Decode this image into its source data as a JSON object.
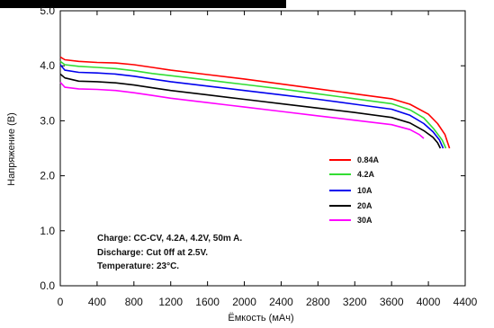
{
  "chart_data": {
    "type": "line",
    "title": "",
    "xlabel": "Ёмкость (мАч)",
    "ylabel": "Напряжение (В)",
    "xlim": [
      0,
      4400
    ],
    "ylim": [
      0.0,
      5.0
    ],
    "x_ticks": [
      "0",
      "400",
      "800",
      "1200",
      "1600",
      "2000",
      "2400",
      "2800",
      "3200",
      "3600",
      "4000",
      "4400"
    ],
    "y_ticks": [
      "0.0",
      "1.0",
      "2.0",
      "3.0",
      "4.0",
      "5.0"
    ],
    "grid": false,
    "legend_position": "right",
    "series": [
      {
        "name": "0.84A",
        "color": "#ff0000",
        "points": [
          [
            0,
            4.16
          ],
          [
            50,
            4.11
          ],
          [
            200,
            4.08
          ],
          [
            400,
            4.06
          ],
          [
            600,
            4.05
          ],
          [
            800,
            4.02
          ],
          [
            1000,
            3.97
          ],
          [
            1200,
            3.92
          ],
          [
            1600,
            3.84
          ],
          [
            2000,
            3.76
          ],
          [
            2400,
            3.67
          ],
          [
            2800,
            3.58
          ],
          [
            3200,
            3.49
          ],
          [
            3600,
            3.4
          ],
          [
            3800,
            3.3
          ],
          [
            4000,
            3.12
          ],
          [
            4100,
            2.95
          ],
          [
            4180,
            2.75
          ],
          [
            4230,
            2.5
          ]
        ]
      },
      {
        "name": "4.2A",
        "color": "#33dd33",
        "points": [
          [
            0,
            4.08
          ],
          [
            50,
            4.02
          ],
          [
            200,
            3.99
          ],
          [
            400,
            3.97
          ],
          [
            600,
            3.95
          ],
          [
            800,
            3.91
          ],
          [
            1000,
            3.86
          ],
          [
            1200,
            3.82
          ],
          [
            1600,
            3.74
          ],
          [
            2000,
            3.66
          ],
          [
            2400,
            3.58
          ],
          [
            2800,
            3.49
          ],
          [
            3200,
            3.4
          ],
          [
            3600,
            3.31
          ],
          [
            3800,
            3.2
          ],
          [
            3950,
            3.05
          ],
          [
            4060,
            2.85
          ],
          [
            4150,
            2.65
          ],
          [
            4190,
            2.5
          ]
        ]
      },
      {
        "name": "10A",
        "color": "#0000ee",
        "points": [
          [
            0,
            4.02
          ],
          [
            50,
            3.92
          ],
          [
            200,
            3.88
          ],
          [
            400,
            3.87
          ],
          [
            600,
            3.85
          ],
          [
            800,
            3.81
          ],
          [
            1000,
            3.76
          ],
          [
            1200,
            3.71
          ],
          [
            1600,
            3.63
          ],
          [
            2000,
            3.55
          ],
          [
            2400,
            3.47
          ],
          [
            2800,
            3.39
          ],
          [
            3200,
            3.3
          ],
          [
            3600,
            3.21
          ],
          [
            3800,
            3.1
          ],
          [
            3950,
            2.95
          ],
          [
            4050,
            2.8
          ],
          [
            4120,
            2.65
          ],
          [
            4160,
            2.5
          ]
        ]
      },
      {
        "name": "20A",
        "color": "#000000",
        "points": [
          [
            0,
            3.85
          ],
          [
            50,
            3.78
          ],
          [
            200,
            3.72
          ],
          [
            400,
            3.71
          ],
          [
            600,
            3.69
          ],
          [
            800,
            3.65
          ],
          [
            1000,
            3.6
          ],
          [
            1200,
            3.55
          ],
          [
            1600,
            3.47
          ],
          [
            2000,
            3.39
          ],
          [
            2400,
            3.31
          ],
          [
            2800,
            3.23
          ],
          [
            3200,
            3.15
          ],
          [
            3600,
            3.06
          ],
          [
            3800,
            2.96
          ],
          [
            3950,
            2.82
          ],
          [
            4050,
            2.7
          ],
          [
            4100,
            2.6
          ],
          [
            4130,
            2.5
          ]
        ]
      },
      {
        "name": "30A",
        "color": "#ff00ff",
        "points": [
          [
            0,
            3.7
          ],
          [
            50,
            3.61
          ],
          [
            200,
            3.58
          ],
          [
            400,
            3.57
          ],
          [
            600,
            3.55
          ],
          [
            800,
            3.51
          ],
          [
            1000,
            3.46
          ],
          [
            1200,
            3.41
          ],
          [
            1600,
            3.33
          ],
          [
            2000,
            3.25
          ],
          [
            2400,
            3.17
          ],
          [
            2800,
            3.09
          ],
          [
            3200,
            3.01
          ],
          [
            3600,
            2.93
          ],
          [
            3800,
            2.84
          ],
          [
            3900,
            2.75
          ],
          [
            3950,
            2.68
          ]
        ]
      }
    ],
    "annotations": [
      "Charge: CC-CV, 4.2A, 4.2V, 50m A.",
      "Discharge: Cut 0ff at 2.5V.",
      "Temperature: 23°C."
    ]
  }
}
